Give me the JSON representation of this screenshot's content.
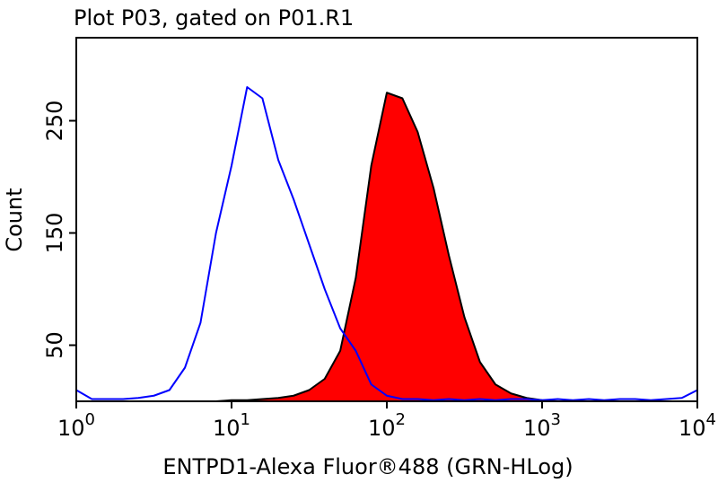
{
  "chart_data": {
    "type": "histogram-overlay",
    "title": "Plot P03, gated on P01.R1",
    "x_label": "ENTPD1-Alexa Fluor®488 (GRN-HLog)",
    "y_label": "Count",
    "xscale": "log",
    "xlim": [
      1,
      10000
    ],
    "ylim": [
      0,
      324
    ],
    "xticks": [
      {
        "value": 1,
        "label": "10",
        "sup": "0"
      },
      {
        "value": 10,
        "label": "10",
        "sup": "1"
      },
      {
        "value": 100,
        "label": "10",
        "sup": "2"
      },
      {
        "value": 1000,
        "label": "10",
        "sup": "3"
      },
      {
        "value": 10000,
        "label": "10",
        "sup": "4"
      }
    ],
    "yticks": [
      50,
      150,
      250
    ],
    "x": [
      1,
      1.26,
      1.58,
      2,
      2.51,
      3.16,
      3.98,
      5.01,
      6.31,
      7.94,
      10,
      12.6,
      15.8,
      20,
      25.1,
      31.6,
      39.8,
      50.1,
      63.1,
      79.4,
      100,
      126,
      158,
      200,
      251,
      316,
      398,
      501,
      631,
      794,
      1000,
      1260,
      1580,
      2000,
      2510,
      3160,
      3980,
      5010,
      6310,
      7940,
      10000
    ],
    "series": [
      {
        "style": "filled",
        "color": "#ff0000",
        "stroke": "#000000",
        "values": [
          0,
          0,
          0,
          0,
          0,
          0,
          0,
          0,
          0,
          0,
          1,
          1,
          2,
          3,
          5,
          10,
          20,
          45,
          110,
          210,
          275,
          270,
          240,
          190,
          130,
          75,
          35,
          15,
          7,
          3,
          1,
          0,
          0,
          0,
          0,
          0,
          0,
          0,
          0,
          0,
          0
        ]
      },
      {
        "style": "line",
        "color": "#0000ff",
        "values": [
          10,
          2,
          2,
          2,
          3,
          5,
          10,
          30,
          70,
          150,
          210,
          280,
          270,
          215,
          180,
          140,
          100,
          65,
          45,
          15,
          5,
          2,
          2,
          1,
          2,
          1,
          2,
          1,
          2,
          2,
          1,
          2,
          1,
          2,
          1,
          2,
          2,
          1,
          2,
          3,
          10
        ]
      }
    ]
  }
}
